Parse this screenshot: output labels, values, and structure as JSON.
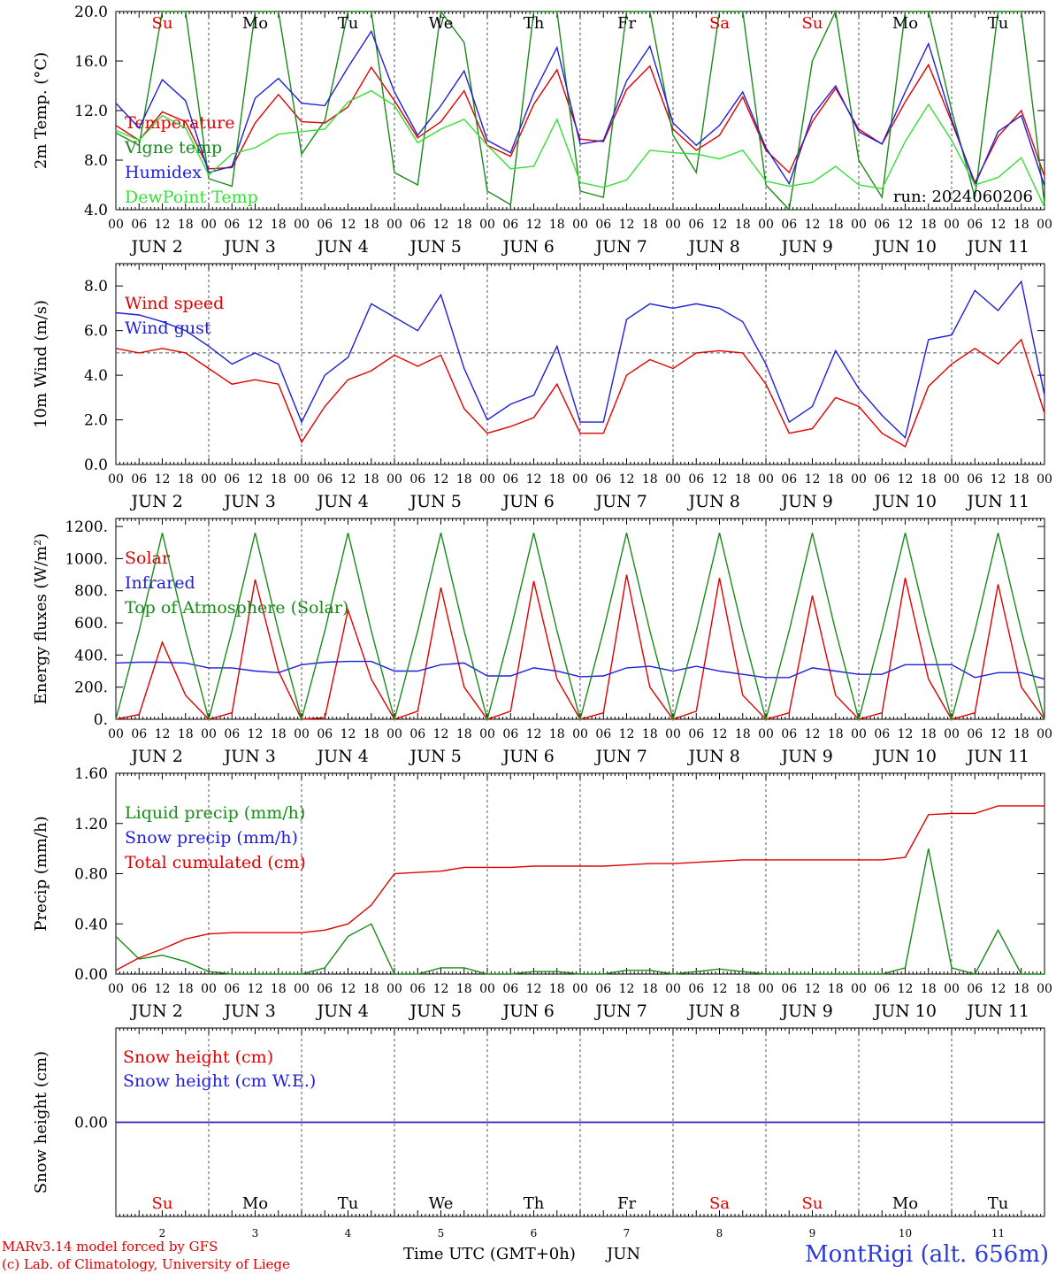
{
  "chart_data": [
    {
      "type": "line",
      "ylabel": "2m Temp. (°C)",
      "ylim": [
        4,
        20
      ],
      "yticks": [
        "20.0",
        "16.0",
        "12.0",
        "8.0",
        "4.0"
      ],
      "annotation": "run: 2024060206",
      "x": "hours since Jun 2 00 UTC, every 6 h (0-240)",
      "series": [
        {
          "name": "Temperature",
          "color": "#e00000",
          "values": [
            10.8,
            9.6,
            11.9,
            11.1,
            7.3,
            7.4,
            11.0,
            13.3,
            11.1,
            11.0,
            12.3,
            15.5,
            12.8,
            9.8,
            11.1,
            13.6,
            9.2,
            8.3,
            12.5,
            15.3,
            9.7,
            9.5,
            13.7,
            15.6,
            10.5,
            8.8,
            10.0,
            13.1,
            8.8,
            7.0,
            11.1,
            13.8,
            10.5,
            9.3,
            12.7,
            15.7,
            11.1,
            6.2,
            9.9,
            12.0,
            6.7
          ]
        },
        {
          "name": "Vigne temp",
          "color": "#1a8a1a",
          "values": [
            10.2,
            9.2,
            20.0,
            20.0,
            6.5,
            5.9,
            20.0,
            20.0,
            8.5,
            11.2,
            20.0,
            20.0,
            7.0,
            6.0,
            20.0,
            17.5,
            5.5,
            4.4,
            20.0,
            20.0,
            5.5,
            5.0,
            20.0,
            20.0,
            10.0,
            7.0,
            20.0,
            20.0,
            6.0,
            3.8,
            16.0,
            20.0,
            8.0,
            5.0,
            20.0,
            20.0,
            12.0,
            5.0,
            20.0,
            20.0,
            4.5
          ]
        },
        {
          "name": "Humidex",
          "color": "#1e1edc",
          "values": [
            12.6,
            10.6,
            14.5,
            12.8,
            7.0,
            7.5,
            13.0,
            14.6,
            12.6,
            12.4,
            15.5,
            18.4,
            13.5,
            10.0,
            12.4,
            15.2,
            9.6,
            8.6,
            13.4,
            17.1,
            9.3,
            9.6,
            14.4,
            17.2,
            11.0,
            9.2,
            10.8,
            13.5,
            9.0,
            6.1,
            11.6,
            14.0,
            10.3,
            9.3,
            13.5,
            17.4,
            11.3,
            6.0,
            10.3,
            11.6,
            5.9
          ]
        },
        {
          "name": "DewPoint Temp",
          "color": "#33e033",
          "values": [
            10.4,
            9.6,
            11.6,
            10.6,
            6.8,
            8.5,
            9.0,
            10.1,
            10.3,
            10.5,
            12.7,
            13.6,
            12.4,
            9.4,
            10.5,
            11.3,
            9.2,
            7.3,
            7.5,
            11.3,
            6.2,
            5.8,
            6.4,
            8.8,
            8.6,
            8.5,
            8.1,
            8.8,
            6.3,
            5.9,
            6.2,
            7.5,
            6.0,
            5.7,
            9.5,
            12.5,
            9.6,
            6.0,
            6.6,
            8.2,
            4.2
          ]
        }
      ]
    },
    {
      "type": "line",
      "ylabel": "10m Wind (m/s)",
      "ylim": [
        0,
        9
      ],
      "yticks": [
        "8.0",
        "6.0",
        "4.0",
        "2.0",
        "0.0"
      ],
      "reference_line": 5.0,
      "x": "hours since Jun 2 00 UTC, every 6 h (0-240)",
      "series": [
        {
          "name": "Wind speed",
          "color": "#e00000",
          "values": [
            5.2,
            5.0,
            5.2,
            5.0,
            4.3,
            3.6,
            3.8,
            3.6,
            1.0,
            2.6,
            3.8,
            4.2,
            4.9,
            4.4,
            4.9,
            2.5,
            1.4,
            1.7,
            2.1,
            3.6,
            1.4,
            1.4,
            4.0,
            4.7,
            4.3,
            5.0,
            5.1,
            5.0,
            3.6,
            1.4,
            1.6,
            3.0,
            2.6,
            1.4,
            0.8,
            3.5,
            4.5,
            5.2,
            4.5,
            5.6,
            2.3
          ]
        },
        {
          "name": "Wind gust",
          "color": "#1e1edc",
          "values": [
            6.8,
            6.7,
            6.4,
            6.0,
            5.3,
            4.5,
            5.0,
            4.5,
            1.9,
            4.0,
            4.8,
            7.2,
            6.6,
            6.0,
            7.6,
            4.3,
            2.0,
            2.7,
            3.1,
            5.3,
            1.9,
            1.9,
            6.5,
            7.2,
            7.0,
            7.2,
            7.0,
            6.4,
            4.5,
            1.9,
            2.6,
            5.1,
            3.4,
            2.2,
            1.2,
            5.6,
            5.8,
            7.8,
            6.9,
            8.2,
            3.1
          ]
        }
      ]
    },
    {
      "type": "line",
      "ylabel": "Energy fluxes (W/m²)",
      "ylim": [
        0,
        1250
      ],
      "yticks": [
        "1200.",
        "1000.",
        "800.",
        "600.",
        "400.",
        "200.",
        "0."
      ],
      "x": "hours since Jun 2 00 UTC, every 6 h (0-240)",
      "series": [
        {
          "name": "Solar",
          "color": "#e00000",
          "values": [
            0,
            30,
            480,
            150,
            0,
            40,
            870,
            300,
            0,
            10,
            680,
            250,
            0,
            50,
            820,
            200,
            0,
            50,
            860,
            250,
            0,
            40,
            900,
            200,
            0,
            50,
            880,
            150,
            0,
            40,
            770,
            150,
            0,
            40,
            880,
            250,
            0,
            40,
            840,
            200,
            0
          ]
        },
        {
          "name": "Infrared",
          "color": "#1e1edc",
          "values": [
            350,
            355,
            355,
            350,
            320,
            320,
            300,
            290,
            340,
            355,
            360,
            360,
            300,
            300,
            340,
            350,
            270,
            270,
            320,
            300,
            265,
            270,
            320,
            330,
            300,
            330,
            300,
            280,
            260,
            260,
            320,
            300,
            280,
            280,
            340,
            340,
            340,
            260,
            290,
            290,
            250
          ]
        },
        {
          "name": "Top of Atmosphere (Solar)",
          "color": "#1a8a1a",
          "values": [
            0,
            550,
            1160,
            550,
            0,
            550,
            1160,
            550,
            0,
            550,
            1160,
            550,
            0,
            550,
            1160,
            550,
            0,
            550,
            1160,
            550,
            0,
            550,
            1160,
            550,
            0,
            550,
            1160,
            550,
            0,
            550,
            1160,
            550,
            0,
            550,
            1160,
            550,
            0,
            550,
            1160,
            550,
            0
          ]
        }
      ]
    },
    {
      "type": "line",
      "ylabel": "Precip (mm/h)",
      "ylim": [
        0,
        1.6
      ],
      "yticks": [
        "1.60",
        "1.20",
        "0.80",
        "0.40",
        "0.00"
      ],
      "x": "hours since Jun 2 00 UTC, every 6 h (0-240)",
      "series": [
        {
          "name": "Liquid precip (mm/h)",
          "color": "#1a8a1a",
          "values": [
            0.3,
            0.12,
            0.15,
            0.1,
            0.02,
            0,
            0,
            0,
            0,
            0.05,
            0.3,
            0.4,
            0.0,
            0,
            0.05,
            0.05,
            0,
            0,
            0.02,
            0.02,
            0,
            0,
            0.03,
            0.03,
            0,
            0.02,
            0.04,
            0.02,
            0,
            0,
            0,
            0,
            0,
            0,
            0.05,
            1.0,
            0.05,
            0,
            0.35,
            0,
            0
          ]
        },
        {
          "name": "Snow precip (mm/h)",
          "color": "#1e1edc",
          "values": []
        },
        {
          "name": "Total cumulated (cm)",
          "color": "#e00000",
          "values": [
            0.03,
            0.13,
            0.2,
            0.28,
            0.32,
            0.33,
            0.33,
            0.33,
            0.33,
            0.35,
            0.4,
            0.55,
            0.8,
            0.81,
            0.82,
            0.85,
            0.85,
            0.85,
            0.86,
            0.86,
            0.86,
            0.86,
            0.87,
            0.88,
            0.88,
            0.89,
            0.9,
            0.91,
            0.91,
            0.91,
            0.91,
            0.91,
            0.91,
            0.91,
            0.93,
            1.27,
            1.28,
            1.28,
            1.34,
            1.34,
            1.34
          ]
        }
      ]
    },
    {
      "type": "line",
      "ylabel": "Snow height (cm)",
      "ylim": [
        -1,
        1
      ],
      "yticks": [
        "0.00"
      ],
      "x": "hours since Jun 2 00 UTC, every 6 h (0-240)",
      "series": [
        {
          "name": "Snow height (cm)",
          "color": "#e00000",
          "values": [
            0,
            0
          ]
        },
        {
          "name": "Snow height (cm W.E.)",
          "color": "#1e1edc",
          "values": [
            0,
            0
          ]
        }
      ]
    }
  ],
  "x_axis": {
    "hour_ticks": [
      "00",
      "06",
      "12",
      "18"
    ],
    "final_tick": "00",
    "day_labels": [
      "JUN  2",
      "JUN  3",
      "JUN  4",
      "JUN  5",
      "JUN  6",
      "JUN  7",
      "JUN  8",
      "JUN  9",
      "JUN 10",
      "JUN 11"
    ],
    "weekdays": [
      "Su",
      "Mo",
      "Tu",
      "We",
      "Th",
      "Fr",
      "Sa",
      "Su",
      "Mo",
      "Tu"
    ],
    "weekday_colors": [
      "#e00000",
      "#000000",
      "#000000",
      "#000000",
      "#000000",
      "#000000",
      "#e00000",
      "#e00000",
      "#000000",
      "#000000"
    ],
    "day_numbers": [
      "2",
      "3",
      "4",
      "5",
      "6",
      "7",
      "8",
      "9",
      "10",
      "11"
    ],
    "axis_title": "Time UTC (GMT+0h)",
    "month": "JUN"
  },
  "footer": {
    "credit_line1": "MARv3.14 model forced by GFS",
    "credit_line2": "(c) Lab. of Climatology, University of Liege",
    "station": "MontRigi (alt. 656m)"
  }
}
